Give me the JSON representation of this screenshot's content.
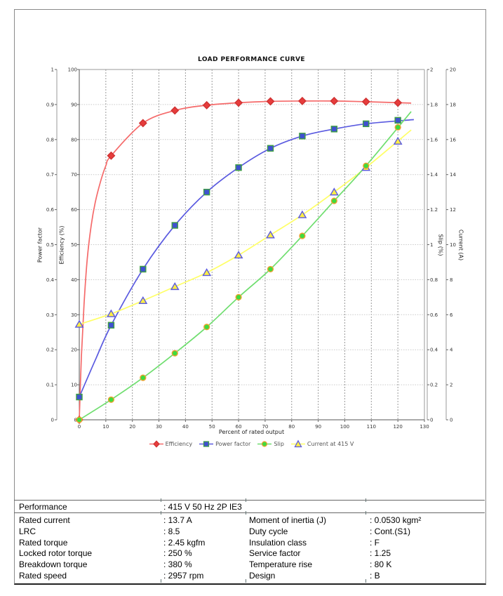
{
  "page": {
    "background": "#ffffff",
    "frame_color": "#8a8a8a"
  },
  "chart": {
    "title": "LOAD PERFORMANCE CURVE",
    "x_axis": {
      "label": "Percent of rated output",
      "min": 0,
      "max": 130,
      "tick_step": 10
    },
    "axes": {
      "power_factor": {
        "label": "Power factor",
        "min": 0,
        "max": 1,
        "tick_step": 0.1,
        "side": "left"
      },
      "efficiency": {
        "label": "Efficiency (%)",
        "min": 0,
        "max": 100,
        "tick_step": 10,
        "side": "left"
      },
      "slip": {
        "label": "Slip (%)",
        "min": 0,
        "max": 2,
        "tick_step": 0.2,
        "side": "right"
      },
      "current": {
        "label": "Current (A)",
        "min": 0,
        "max": 20,
        "tick_step": 2,
        "side": "right"
      }
    },
    "grid": {
      "vertical_color": "#9a9a9a",
      "horizontal_color": "#c9c9c9",
      "border_color": "#9a9a9a",
      "axis_color": "#9a9a9a"
    }
  },
  "chart_data": {
    "type": "line",
    "title": "LOAD PERFORMANCE CURVE",
    "xlabel": "Percent of rated output",
    "xlim": [
      0,
      130
    ],
    "grid": true,
    "legend_position": "bottom",
    "x": [
      0,
      12,
      24,
      36,
      48,
      60,
      72,
      84,
      96,
      108,
      120
    ],
    "series": [
      {
        "name": "Efficiency",
        "axis": "efficiency",
        "ylim": [
          0,
          100
        ],
        "values": [
          0,
          75.4,
          84.7,
          88.3,
          89.8,
          90.5,
          90.9,
          91.0,
          91.0,
          90.8,
          90.5
        ],
        "line_color": "#f56a6a",
        "marker": "diamond",
        "marker_fill": "#e63c3c",
        "marker_stroke": "#cf3131",
        "curve_points": [
          [
            0,
            0
          ],
          [
            0.8,
            18
          ],
          [
            1.8,
            33
          ],
          [
            3,
            46
          ],
          [
            4.5,
            55.5
          ],
          [
            6,
            62
          ],
          [
            8,
            68
          ],
          [
            10,
            72.5
          ],
          [
            12,
            75.4
          ],
          [
            24,
            84.7
          ],
          [
            36,
            88.3
          ],
          [
            48,
            89.8
          ],
          [
            60,
            90.5
          ],
          [
            72,
            90.9
          ],
          [
            84,
            91.0
          ],
          [
            96,
            91.0
          ],
          [
            108,
            90.8
          ],
          [
            125,
            90.4
          ]
        ]
      },
      {
        "name": "Power factor",
        "axis": "power_factor",
        "ylim": [
          0,
          1
        ],
        "values": [
          0.065,
          0.27,
          0.43,
          0.555,
          0.65,
          0.72,
          0.775,
          0.81,
          0.83,
          0.845,
          0.855
        ],
        "line_color": "#5a5ae0",
        "marker": "square",
        "marker_fill": "#3f51d0",
        "marker_stroke": "#3f9e44",
        "curve_points": [
          [
            0,
            0.065
          ],
          [
            6,
            0.17
          ],
          [
            12,
            0.27
          ],
          [
            24,
            0.43
          ],
          [
            36,
            0.555
          ],
          [
            48,
            0.65
          ],
          [
            60,
            0.72
          ],
          [
            72,
            0.775
          ],
          [
            84,
            0.81
          ],
          [
            96,
            0.83
          ],
          [
            108,
            0.845
          ],
          [
            126,
            0.857
          ]
        ]
      },
      {
        "name": "Current at 415 V",
        "axis": "current",
        "ylim": [
          0,
          20
        ],
        "values": [
          5.45,
          6.05,
          6.8,
          7.6,
          8.4,
          9.4,
          10.55,
          11.7,
          13.0,
          14.4,
          15.9
        ],
        "line_color": "#ffff66",
        "marker": "triangle",
        "marker_fill": "#ffee44",
        "marker_stroke": "#5a5ae0",
        "curve_points": [
          [
            0,
            5.45
          ],
          [
            12,
            6.05
          ],
          [
            24,
            6.8
          ],
          [
            36,
            7.6
          ],
          [
            48,
            8.4
          ],
          [
            60,
            9.4
          ],
          [
            72,
            10.55
          ],
          [
            84,
            11.7
          ],
          [
            96,
            13.0
          ],
          [
            108,
            14.4
          ],
          [
            125,
            16.55
          ]
        ]
      },
      {
        "name": "Slip",
        "axis": "slip",
        "ylim": [
          0,
          2
        ],
        "values": [
          0,
          0.115,
          0.24,
          0.38,
          0.53,
          0.7,
          0.86,
          1.05,
          1.25,
          1.45,
          1.67
        ],
        "line_color": "#6fde6f",
        "marker": "circle",
        "marker_fill": "#3edc3e",
        "marker_stroke": "#f0a030",
        "curve_points": [
          [
            0,
            0
          ],
          [
            12,
            0.115
          ],
          [
            24,
            0.24
          ],
          [
            36,
            0.38
          ],
          [
            48,
            0.53
          ],
          [
            60,
            0.7
          ],
          [
            72,
            0.86
          ],
          [
            84,
            1.05
          ],
          [
            96,
            1.25
          ],
          [
            108,
            1.45
          ],
          [
            125,
            1.76
          ]
        ]
      }
    ]
  },
  "legend_order": [
    "Efficiency",
    "Power factor",
    "Slip",
    "Current at 415 V"
  ],
  "spec_table": {
    "performance": {
      "label": "Performance",
      "value": ": 415 V 50 Hz 2P IE3"
    },
    "left": [
      {
        "label": "Rated current",
        "value": ": 13.7 A"
      },
      {
        "label": "LRC",
        "value": ": 8.5"
      },
      {
        "label": "Rated torque",
        "value": ": 2.45 kgfm"
      },
      {
        "label": "Locked rotor torque",
        "value": ": 250 %"
      },
      {
        "label": "Breakdown torque",
        "value": ": 380 %"
      },
      {
        "label": "Rated speed",
        "value": ": 2957 rpm"
      }
    ],
    "right": [
      {
        "label": "Moment of inertia (J)",
        "value": ": 0.0530 kgm²"
      },
      {
        "label": "Duty cycle",
        "value": ": Cont.(S1)"
      },
      {
        "label": "Insulation class",
        "value": ": F"
      },
      {
        "label": "Service factor",
        "value": ": 1.25"
      },
      {
        "label": "Temperature rise",
        "value": ": 80 K"
      },
      {
        "label": "Design",
        "value": ": B"
      }
    ]
  }
}
